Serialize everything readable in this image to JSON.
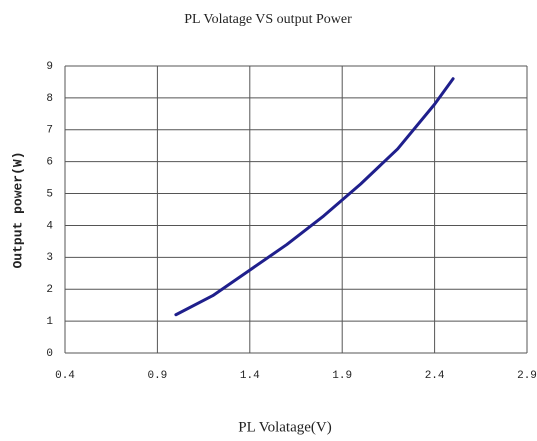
{
  "chart_data": {
    "type": "line",
    "title": "PL Volatage VS output Power",
    "x_label": "PL Volatage(V)",
    "y_label": "Output power(W)",
    "x": [
      1.0,
      1.2,
      1.4,
      1.6,
      1.8,
      2.0,
      2.2,
      2.4,
      2.5
    ],
    "series": [
      {
        "name": "Output power",
        "color": "#1f1f8c",
        "values": [
          1.2,
          1.8,
          2.6,
          3.4,
          4.3,
          5.3,
          6.4,
          7.8,
          8.6
        ]
      }
    ],
    "xlim": [
      0.4,
      2.9
    ],
    "xticks": [
      0.4,
      0.9,
      1.4,
      1.9,
      2.4,
      2.9
    ],
    "ylim": [
      0,
      9
    ],
    "yticks": [
      0,
      1,
      2,
      3,
      4,
      5,
      6,
      7,
      8,
      9
    ],
    "grid": true
  }
}
